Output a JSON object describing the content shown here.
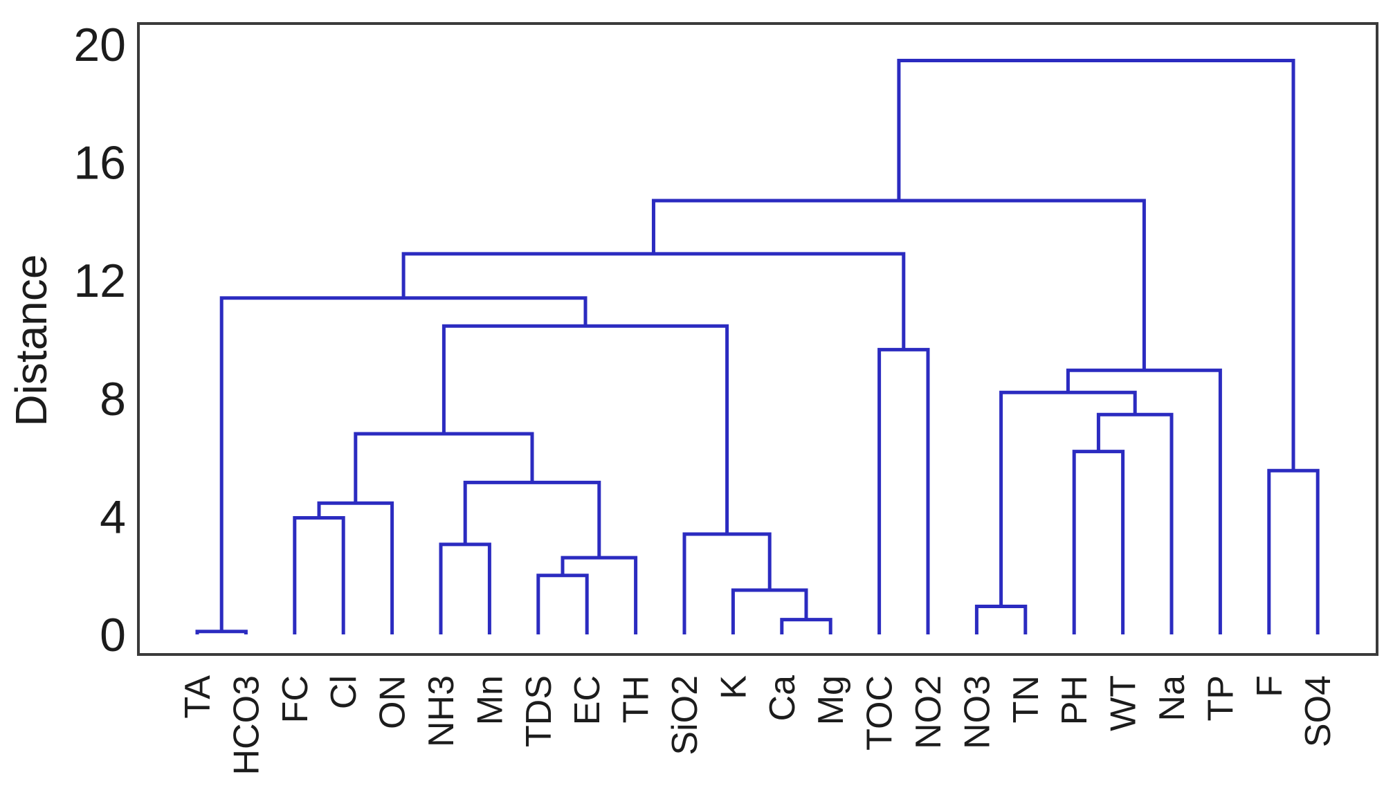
{
  "chart_data": {
    "type": "dendrogram",
    "title": "",
    "ylabel": "Distance",
    "xlabel": "",
    "yticks": [
      0,
      4,
      8,
      12,
      16,
      20
    ],
    "ylim": [
      -0.7,
      20.7
    ],
    "grid": false,
    "legend": "none",
    "orientation": "vertical",
    "line_color": "#2b2bc0",
    "frame_color": "#3a3a3a",
    "text_color": "#1c1c1c",
    "background_color": "#ffffff",
    "leaves": [
      "TA",
      "HCO3",
      "FC",
      "Cl",
      "ON",
      "NH3",
      "Mn",
      "TDS",
      "EC",
      "TH",
      "SiO2",
      "K",
      "Ca",
      "Mg",
      "TOC",
      "NO2",
      "NO3",
      "TN",
      "PH",
      "WT",
      "Na",
      "TP",
      "F",
      "SO4"
    ],
    "merges": [
      {
        "id": "M1",
        "a": "TA",
        "b": "HCO3",
        "h": 0.1
      },
      {
        "id": "M2",
        "a": "Ca",
        "b": "Mg",
        "h": 0.5
      },
      {
        "id": "M3",
        "a": "NO3",
        "b": "TN",
        "h": 0.95
      },
      {
        "id": "M4",
        "a": "K",
        "b": "M2",
        "h": 1.5
      },
      {
        "id": "M5",
        "a": "TDS",
        "b": "EC",
        "h": 2.0
      },
      {
        "id": "M6",
        "a": "M5",
        "b": "TH",
        "h": 2.6
      },
      {
        "id": "M7",
        "a": "NH3",
        "b": "Mn",
        "h": 3.05
      },
      {
        "id": "M8",
        "a": "SiO2",
        "b": "M4",
        "h": 3.4
      },
      {
        "id": "M9",
        "a": "FC",
        "b": "Cl",
        "h": 3.95
      },
      {
        "id": "M10",
        "a": "M9",
        "b": "ON",
        "h": 4.45
      },
      {
        "id": "M11",
        "a": "M7",
        "b": "M6",
        "h": 5.15
      },
      {
        "id": "M12",
        "a": "F",
        "b": "SO4",
        "h": 5.55
      },
      {
        "id": "M13",
        "a": "PH",
        "b": "WT",
        "h": 6.2
      },
      {
        "id": "M14",
        "a": "M10",
        "b": "M11",
        "h": 6.8
      },
      {
        "id": "M15",
        "a": "M13",
        "b": "Na",
        "h": 7.45
      },
      {
        "id": "M16",
        "a": "M3",
        "b": "M15",
        "h": 8.2
      },
      {
        "id": "M17",
        "a": "M16",
        "b": "TP",
        "h": 8.95
      },
      {
        "id": "M18",
        "a": "TOC",
        "b": "NO2",
        "h": 9.65
      },
      {
        "id": "M19",
        "a": "M14",
        "b": "M8",
        "h": 10.45
      },
      {
        "id": "M20",
        "a": "M1",
        "b": "M19",
        "h": 11.4
      },
      {
        "id": "M21",
        "a": "M20",
        "b": "M18",
        "h": 12.9
      },
      {
        "id": "M22",
        "a": "M21",
        "b": "M17",
        "h": 14.7
      },
      {
        "id": "M23",
        "a": "M22",
        "b": "M12",
        "h": 19.45
      }
    ]
  }
}
